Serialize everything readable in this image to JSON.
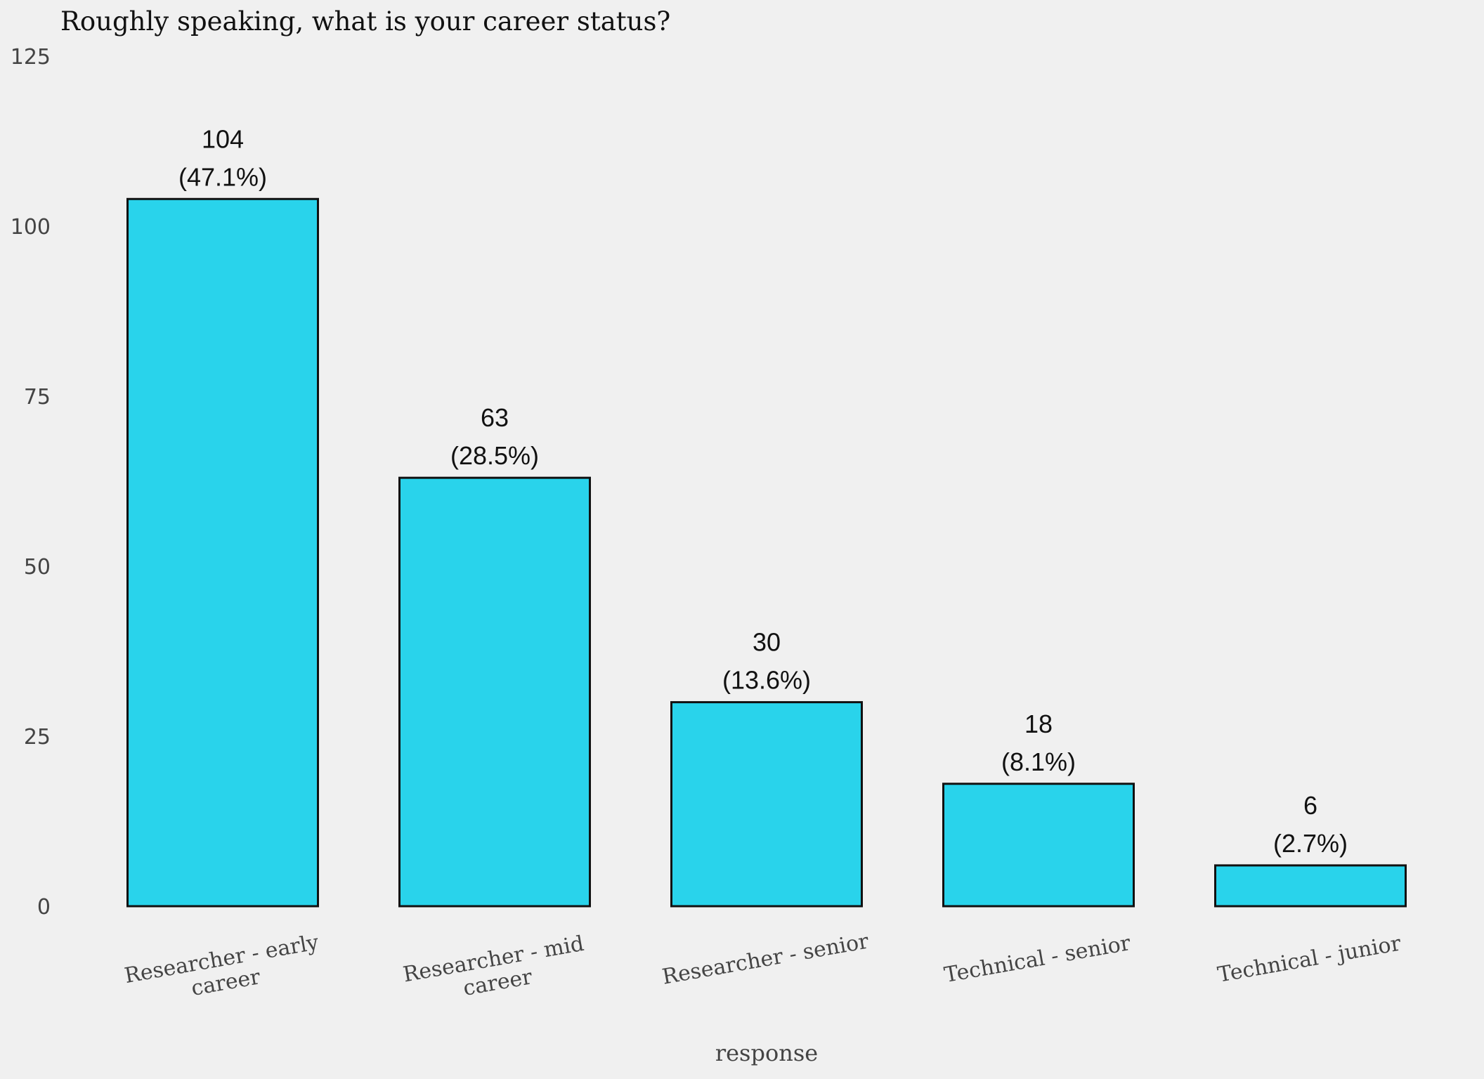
{
  "chart_data": {
    "type": "bar",
    "title": "Roughly speaking, what is your career status?",
    "xlabel": "response",
    "ylabel": "",
    "categories": [
      [
        "Researcher - early",
        "career"
      ],
      [
        "Researcher - mid",
        "career"
      ],
      [
        "Researcher - senior"
      ],
      [
        "Technical - senior"
      ],
      [
        "Technical - junior"
      ]
    ],
    "values": [
      104,
      63,
      30,
      18,
      6
    ],
    "percent_labels": [
      "(47.1%)",
      "(28.5%)",
      "(13.6%)",
      "(8.1%)",
      "(2.7%)"
    ],
    "ylim": [
      0,
      125
    ],
    "yticks": [
      "0",
      "25",
      "50",
      "75",
      "100",
      "125"
    ],
    "grid": false,
    "legend": "none",
    "bar_color": "#29d3eb",
    "bar_edge_color": "#111111",
    "background_color": "#f0f0f0"
  }
}
